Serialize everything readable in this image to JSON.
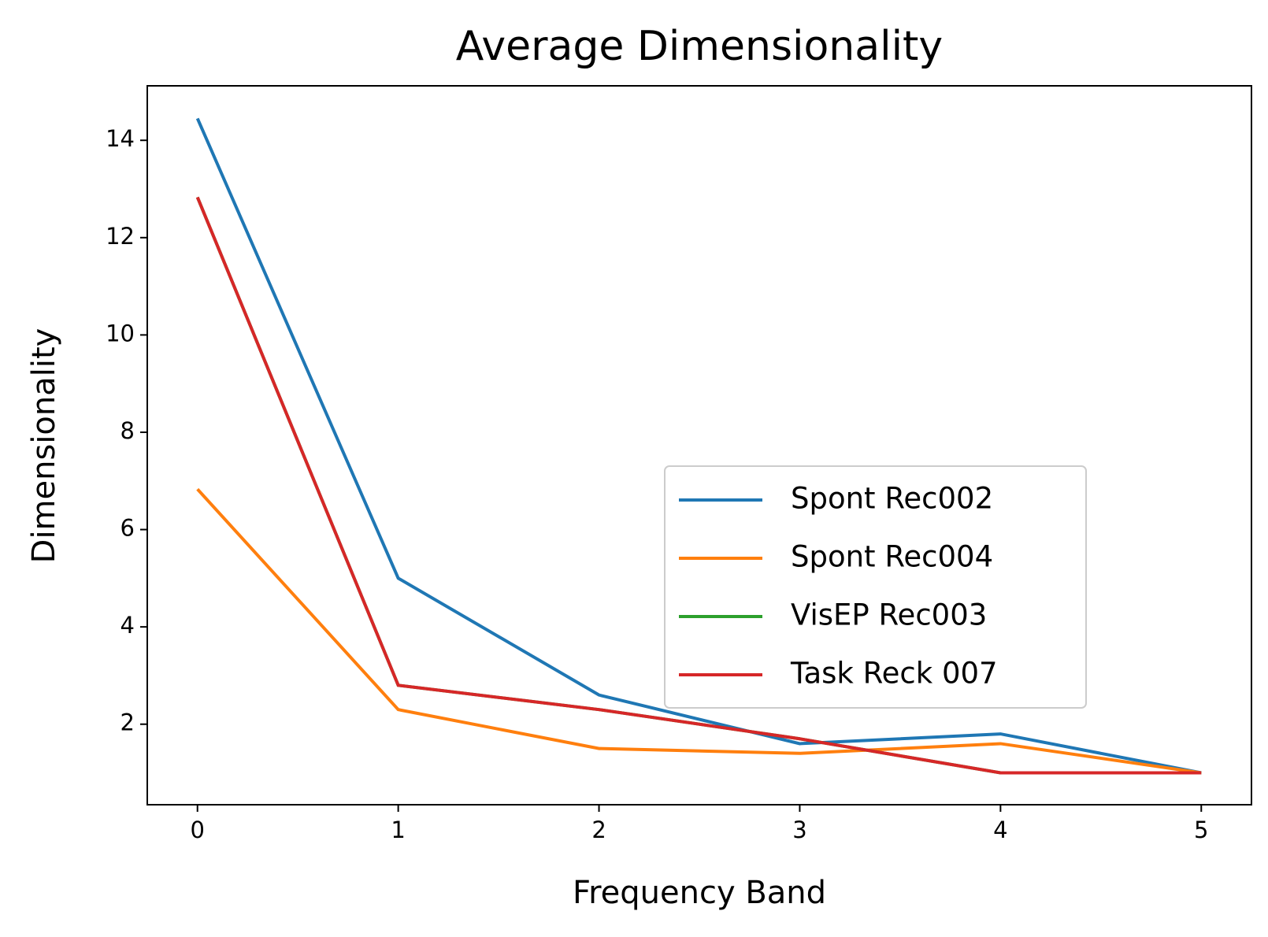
{
  "chart_data": {
    "type": "line",
    "title": "Average Dimensionality",
    "x_label": "Frequency Band",
    "y_label": "Dimensionality",
    "x": [
      0,
      1,
      2,
      3,
      4,
      5
    ],
    "series": [
      {
        "name": "Spont Rec002",
        "color": "#1f77b4",
        "values": [
          14.45,
          5.0,
          2.6,
          1.6,
          1.8,
          1.0
        ]
      },
      {
        "name": "Spont Rec004",
        "color": "#ff7f0e",
        "values": [
          6.83,
          2.3,
          1.5,
          1.4,
          1.6,
          1.0
        ]
      },
      {
        "name": "VisEP Rec003",
        "color": "#2ca02c",
        "values": [
          12.83,
          2.8,
          2.3,
          1.7,
          1.0,
          1.0
        ]
      },
      {
        "name": "Task Reck 007",
        "color": "#d62728",
        "values": [
          12.83,
          2.8,
          2.3,
          1.7,
          1.0,
          1.0
        ]
      }
    ],
    "xlim": [
      -0.25,
      5.25
    ],
    "xticks": [
      0,
      1,
      2,
      3,
      4,
      5
    ],
    "ylim": [
      0.345,
      15.12
    ],
    "yticks": [
      2,
      4,
      6,
      8,
      10,
      12,
      14
    ]
  }
}
